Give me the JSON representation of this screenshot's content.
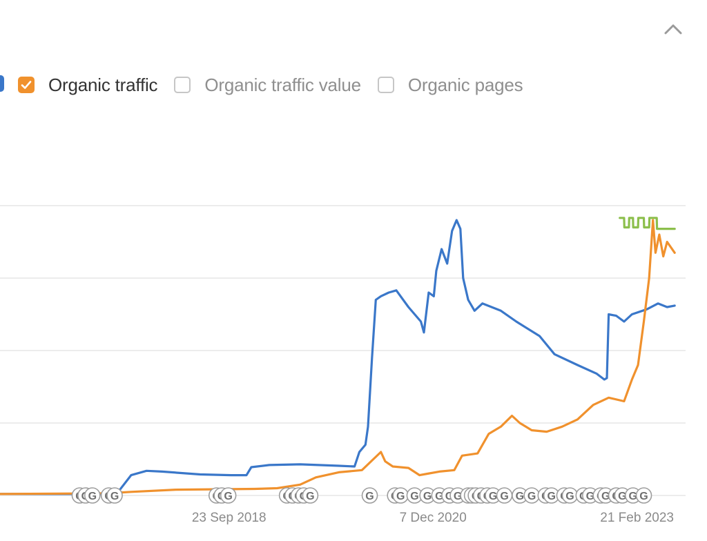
{
  "legend": {
    "items": [
      {
        "label": "Organic traffic",
        "checked": true,
        "color": "#f0912d"
      },
      {
        "label": "Organic traffic value",
        "checked": false,
        "color": "#c6c6c6"
      },
      {
        "label": "Organic pages",
        "checked": false,
        "color": "#c6c6c6"
      }
    ],
    "cut_item_color": "#3a77c9"
  },
  "header": {
    "collapse_icon": "chevron-up-icon"
  },
  "colors": {
    "grid": "#e6e6e6",
    "axis_label": "#8a8a8a",
    "marker_stroke": "#9c9c9c",
    "marker_text": "#6f6f6f"
  },
  "chart_data": {
    "type": "line",
    "x_range": [
      "2016-04-01",
      "2023-09-01"
    ],
    "x_ticks": [
      {
        "date": "2018-09-23",
        "label": "23 Sep 2018"
      },
      {
        "date": "2020-12-07",
        "label": "7 Dec 2020"
      },
      {
        "date": "2023-02-21",
        "label": "21 Feb 2023"
      }
    ],
    "y_range": [
      0,
      4
    ],
    "y_gridlines": [
      0,
      1,
      2,
      3,
      4
    ],
    "grid": true,
    "series": [
      {
        "color": "#3a77c9",
        "points": [
          [
            "2016-04-01",
            0.02
          ],
          [
            "2017-06-01",
            0.02
          ],
          [
            "2017-07-10",
            0.04
          ],
          [
            "2017-09-01",
            0.28
          ],
          [
            "2017-11-01",
            0.34
          ],
          [
            "2018-01-01",
            0.33
          ],
          [
            "2018-06-01",
            0.29
          ],
          [
            "2018-10-01",
            0.28
          ],
          [
            "2018-12-01",
            0.28
          ],
          [
            "2018-12-20",
            0.39
          ],
          [
            "2019-03-01",
            0.42
          ],
          [
            "2019-07-01",
            0.43
          ],
          [
            "2019-12-01",
            0.41
          ],
          [
            "2020-02-01",
            0.4
          ],
          [
            "2020-02-20",
            0.6
          ],
          [
            "2020-03-15",
            0.7
          ],
          [
            "2020-03-25",
            0.95
          ],
          [
            "2020-04-10",
            1.9
          ],
          [
            "2020-04-25",
            2.7
          ],
          [
            "2020-05-15",
            2.75
          ],
          [
            "2020-06-15",
            2.8
          ],
          [
            "2020-07-15",
            2.83
          ],
          [
            "2020-09-01",
            2.6
          ],
          [
            "2020-10-20",
            2.4
          ],
          [
            "2020-11-01",
            2.25
          ],
          [
            "2020-11-20",
            2.8
          ],
          [
            "2020-12-10",
            2.75
          ],
          [
            "2020-12-20",
            3.1
          ],
          [
            "2021-01-10",
            3.4
          ],
          [
            "2021-02-01",
            3.2
          ],
          [
            "2021-02-20",
            3.65
          ],
          [
            "2021-03-10",
            3.8
          ],
          [
            "2021-03-25",
            3.68
          ],
          [
            "2021-04-05",
            3.0
          ],
          [
            "2021-04-25",
            2.7
          ],
          [
            "2021-05-20",
            2.55
          ],
          [
            "2021-06-20",
            2.65
          ],
          [
            "2021-09-01",
            2.55
          ],
          [
            "2021-11-01",
            2.4
          ],
          [
            "2022-02-01",
            2.2
          ],
          [
            "2022-04-01",
            1.95
          ],
          [
            "2022-07-01",
            1.8
          ],
          [
            "2022-09-15",
            1.68
          ],
          [
            "2022-10-15",
            1.6
          ],
          [
            "2022-10-25",
            1.62
          ],
          [
            "2022-11-01",
            2.5
          ],
          [
            "2022-12-01",
            2.48
          ],
          [
            "2023-01-01",
            2.4
          ],
          [
            "2023-02-01",
            2.5
          ],
          [
            "2023-04-01",
            2.57
          ],
          [
            "2023-05-15",
            2.65
          ],
          [
            "2023-06-20",
            2.6
          ],
          [
            "2023-07-20",
            2.62
          ]
        ]
      },
      {
        "color": "#f0912d",
        "points": [
          [
            "2016-04-01",
            0.02
          ],
          [
            "2017-06-01",
            0.03
          ],
          [
            "2017-09-01",
            0.05
          ],
          [
            "2018-03-01",
            0.08
          ],
          [
            "2019-01-01",
            0.09
          ],
          [
            "2019-04-01",
            0.1
          ],
          [
            "2019-07-01",
            0.15
          ],
          [
            "2019-09-01",
            0.25
          ],
          [
            "2019-12-01",
            0.32
          ],
          [
            "2020-03-01",
            0.35
          ],
          [
            "2020-04-15",
            0.5
          ],
          [
            "2020-05-15",
            0.6
          ],
          [
            "2020-06-01",
            0.47
          ],
          [
            "2020-07-01",
            0.4
          ],
          [
            "2020-09-01",
            0.38
          ],
          [
            "2020-10-15",
            0.28
          ],
          [
            "2020-11-15",
            0.3
          ],
          [
            "2021-01-01",
            0.33
          ],
          [
            "2021-03-01",
            0.35
          ],
          [
            "2021-04-01",
            0.55
          ],
          [
            "2021-06-01",
            0.58
          ],
          [
            "2021-07-15",
            0.85
          ],
          [
            "2021-09-01",
            0.95
          ],
          [
            "2021-10-15",
            1.1
          ],
          [
            "2021-11-15",
            1.0
          ],
          [
            "2022-01-01",
            0.9
          ],
          [
            "2022-03-01",
            0.88
          ],
          [
            "2022-05-01",
            0.95
          ],
          [
            "2022-07-01",
            1.05
          ],
          [
            "2022-09-01",
            1.25
          ],
          [
            "2022-11-01",
            1.35
          ],
          [
            "2023-01-01",
            1.3
          ],
          [
            "2023-02-01",
            1.6
          ],
          [
            "2023-02-25",
            1.8
          ],
          [
            "2023-03-20",
            2.4
          ],
          [
            "2023-04-10",
            3.0
          ],
          [
            "2023-04-25",
            3.8
          ],
          [
            "2023-05-05",
            3.35
          ],
          [
            "2023-05-20",
            3.6
          ],
          [
            "2023-06-05",
            3.3
          ],
          [
            "2023-06-20",
            3.5
          ],
          [
            "2023-07-20",
            3.35
          ]
        ]
      },
      {
        "color": "#8cbf4c",
        "step": true,
        "points": [
          [
            "2022-12-15",
            3.83
          ],
          [
            "2023-01-01",
            3.83
          ],
          [
            "2023-01-02",
            3.7
          ],
          [
            "2023-01-20",
            3.7
          ],
          [
            "2023-01-21",
            3.83
          ],
          [
            "2023-02-05",
            3.83
          ],
          [
            "2023-02-06",
            3.7
          ],
          [
            "2023-02-25",
            3.7
          ],
          [
            "2023-02-26",
            3.83
          ],
          [
            "2023-03-20",
            3.83
          ],
          [
            "2023-03-21",
            3.7
          ],
          [
            "2023-04-10",
            3.7
          ],
          [
            "2023-04-11",
            3.83
          ],
          [
            "2023-05-10",
            3.83
          ],
          [
            "2023-05-11",
            3.68
          ],
          [
            "2023-07-20",
            3.68
          ]
        ]
      }
    ],
    "annotation_markers": {
      "label": "G",
      "dates": [
        "2017-02-10",
        "2017-03-05",
        "2017-04-01",
        "2017-06-05",
        "2017-06-28",
        "2018-08-05",
        "2018-08-25",
        "2018-09-20",
        "2019-05-10",
        "2019-06-01",
        "2019-06-25",
        "2019-07-15",
        "2019-08-10",
        "2020-04-01",
        "2020-07-10",
        "2020-08-01",
        "2020-09-25",
        "2020-11-15",
        "2021-01-01",
        "2021-02-10",
        "2021-03-15",
        "2021-04-25",
        "2021-05-10",
        "2021-05-25",
        "2021-06-15",
        "2021-07-10",
        "2021-08-01",
        "2021-09-15",
        "2021-11-15",
        "2022-01-01",
        "2022-02-25",
        "2022-03-20",
        "2022-05-10",
        "2022-06-01",
        "2022-07-25",
        "2022-08-20",
        "2022-10-01",
        "2022-10-20",
        "2022-12-01",
        "2022-12-25",
        "2023-02-05",
        "2023-03-20"
      ]
    }
  }
}
